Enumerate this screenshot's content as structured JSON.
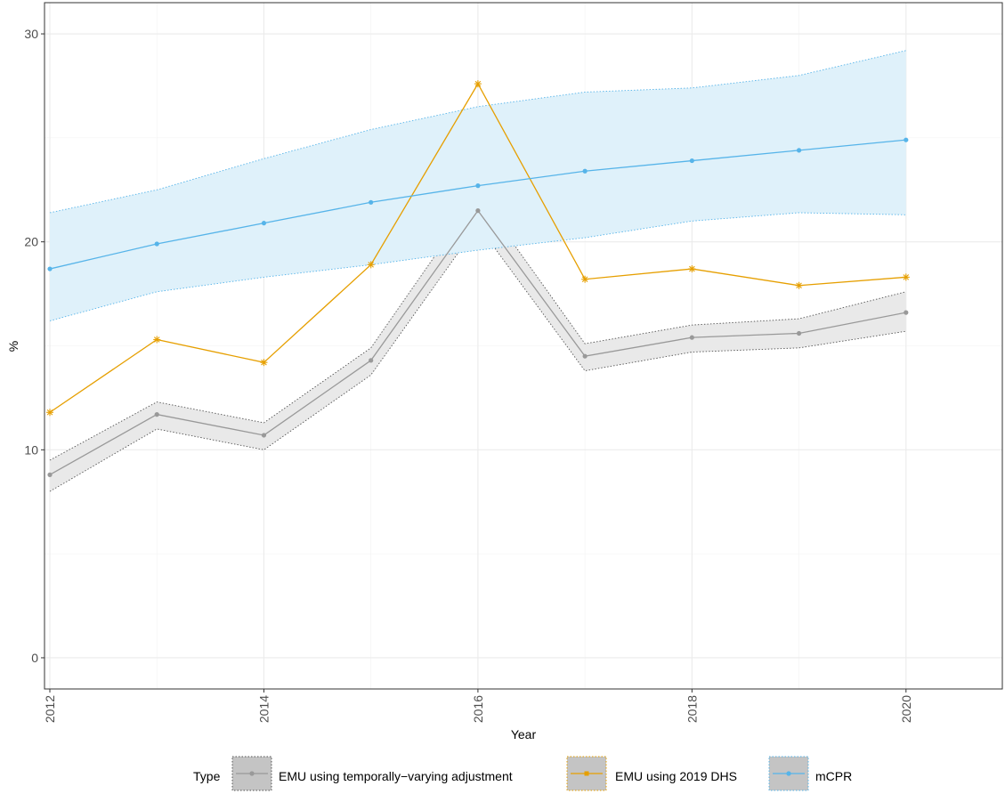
{
  "chart_data": {
    "type": "line",
    "xlabel": "Year",
    "ylabel": "%",
    "xlim": [
      2011.95,
      2020.9
    ],
    "ylim": [
      -1.5,
      31.5
    ],
    "x_ticks": [
      2012,
      2014,
      2016,
      2018,
      2020
    ],
    "x_tick_labels": [
      "2012",
      "2014",
      "2016",
      "2018",
      "2020"
    ],
    "y_ticks": [
      0,
      10,
      20,
      30
    ],
    "y_tick_labels": [
      "0",
      "10",
      "20",
      "30"
    ],
    "grid": true,
    "legend_position": "bottom",
    "legend_title": "Type",
    "x": [
      2012,
      2013,
      2014,
      2015,
      2016,
      2017,
      2018,
      2019,
      2020
    ],
    "series": [
      {
        "name": "EMU using temporally−varying adjustment",
        "color": "#999999",
        "marker": "circle",
        "values": [
          8.8,
          11.7,
          10.7,
          14.3,
          21.5,
          14.5,
          15.4,
          15.6,
          16.6
        ],
        "lower": [
          8.0,
          11.0,
          10.0,
          13.6,
          20.8,
          13.8,
          14.7,
          14.9,
          15.7
        ],
        "upper": [
          9.5,
          12.3,
          11.3,
          14.9,
          22.3,
          15.1,
          16.0,
          16.3,
          17.6
        ],
        "band_color": "#e9e9e9"
      },
      {
        "name": "EMU using 2019 DHS",
        "color": "#E69F00",
        "marker": "asterisk",
        "values": [
          11.8,
          15.3,
          14.2,
          18.9,
          27.6,
          18.2,
          18.7,
          17.9,
          18.3
        ]
      },
      {
        "name": "mCPR",
        "color": "#56B4E9",
        "marker": "circle",
        "values": [
          18.7,
          19.9,
          20.9,
          21.9,
          22.7,
          23.4,
          23.9,
          24.4,
          24.9
        ],
        "lower": [
          16.2,
          17.6,
          18.3,
          18.9,
          19.6,
          20.2,
          21.0,
          21.4,
          21.3
        ],
        "upper": [
          21.4,
          22.5,
          24.0,
          25.4,
          26.5,
          27.2,
          27.4,
          28.0,
          29.2
        ],
        "band_color": "#dff1fa"
      }
    ]
  }
}
